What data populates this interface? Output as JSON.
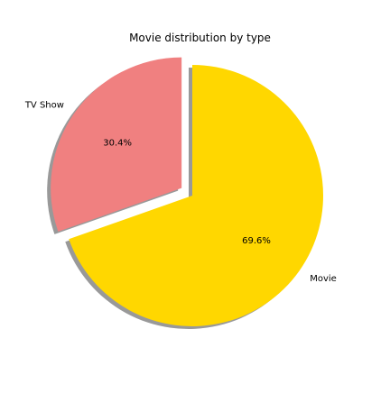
{
  "chart_data": {
    "type": "pie",
    "title": "Movie distribution by type",
    "labels": [
      "TV Show",
      "Movie"
    ],
    "values": [
      30.4,
      69.6
    ],
    "pct_labels": [
      "30.4%",
      "69.6%"
    ],
    "colors": [
      "#f08080",
      "#ffd700"
    ],
    "explode": [
      0.1,
      0
    ],
    "shadow": true,
    "start_angle_deg": 90,
    "direction": "counterclockwise",
    "legend": "none"
  }
}
